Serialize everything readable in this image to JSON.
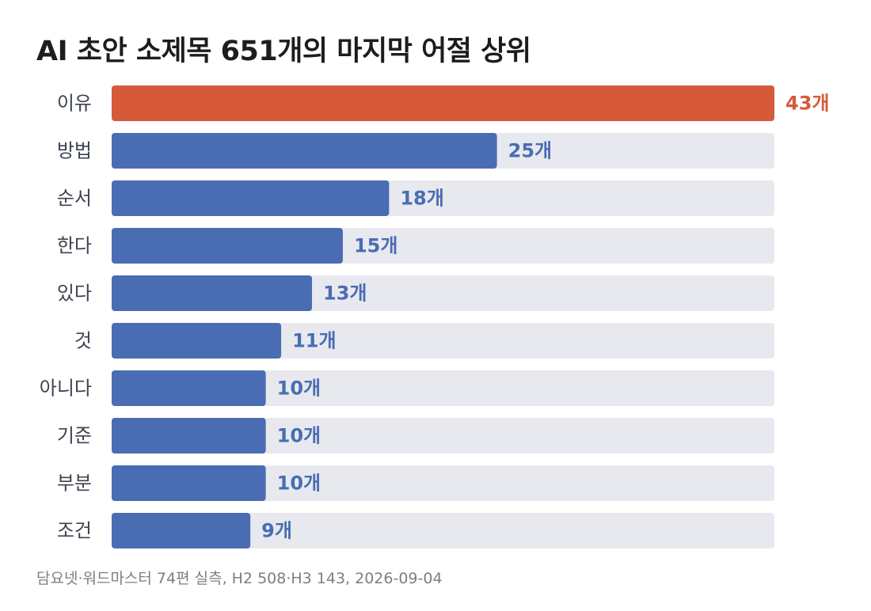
{
  "chart_data": {
    "type": "bar",
    "orientation": "horizontal",
    "title": "AI 초안 소제목 651개의 마지막 어절 상위",
    "categories": [
      "이유",
      "방법",
      "순서",
      "한다",
      "있다",
      "것",
      "아니다",
      "기준",
      "부분",
      "조건"
    ],
    "values": [
      43,
      25,
      18,
      15,
      13,
      11,
      10,
      10,
      10,
      9
    ],
    "value_labels": [
      "43개",
      "25개",
      "18개",
      "15개",
      "13개",
      "11개",
      "10개",
      "10개",
      "10개",
      "9개"
    ],
    "xlim": [
      0,
      43
    ],
    "highlight_index": 0,
    "grid": false,
    "legend": "none",
    "colors": {
      "highlight": "#d65a3a",
      "bar": "#4a6cb3",
      "track": "#e7e9ee",
      "category_label": "#3d4350",
      "title": "#1d1d1f",
      "note": "#7a7f88"
    },
    "note": "담요넷·워드마스터 74편 실측, H2 508·H3 143, 2026-09-04"
  }
}
